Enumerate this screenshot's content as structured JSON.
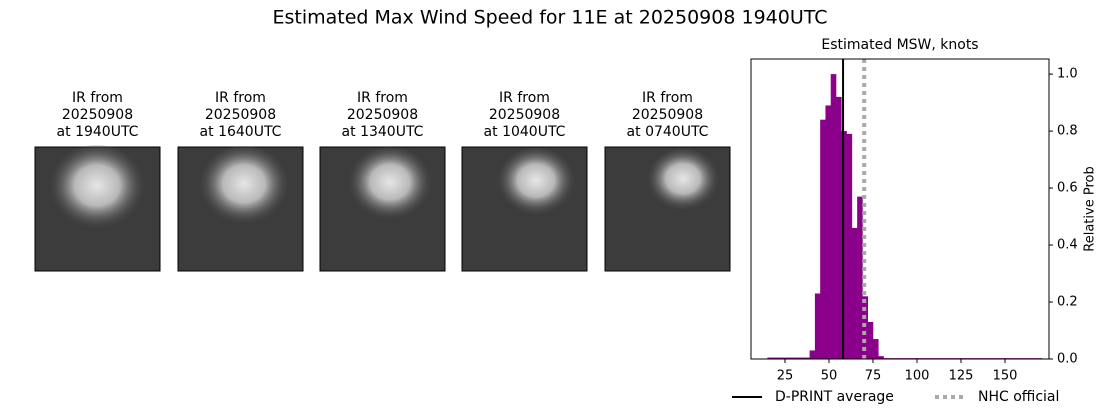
{
  "chart_data": {
    "type": "histogram",
    "title": "Estimated Max Wind Speed for 11E at 20250908 1940UTC",
    "subtitle": "Estimated MSW, knots",
    "y_label": "Relative Prob",
    "images": [
      {
        "caption": [
          "IR from",
          "20250908",
          "at 1940UTC"
        ]
      },
      {
        "caption": [
          "IR from",
          "20250908",
          "at 1640UTC"
        ]
      },
      {
        "caption": [
          "IR from",
          "20250908",
          "at 1340UTC"
        ]
      },
      {
        "caption": [
          "IR from",
          "20250908",
          "at 1040UTC"
        ]
      },
      {
        "caption": [
          "IR from",
          "20250908",
          "at 0740UTC"
        ]
      }
    ],
    "color": "#8b008b",
    "bins": [
      15,
      18,
      21,
      24,
      27,
      30,
      33,
      36,
      39,
      42,
      45,
      48,
      51,
      54,
      57,
      60,
      63,
      66,
      69,
      72,
      75,
      78,
      81,
      84,
      87,
      90,
      93,
      96,
      99,
      102,
      105,
      108,
      111,
      114,
      117,
      120,
      123,
      126,
      129,
      132,
      135,
      138,
      141,
      144,
      147,
      150,
      153,
      156,
      159,
      162,
      165,
      168,
      171
    ],
    "counts": [
      0.005,
      0.005,
      0.005,
      0.005,
      0.005,
      0.005,
      0.005,
      0.005,
      0.03,
      0.23,
      0.84,
      0.89,
      1.0,
      0.92,
      0.8,
      0.79,
      0.46,
      0.57,
      0.22,
      0.13,
      0.07,
      0.01,
      0.003,
      0.003,
      0.003,
      0.003,
      0.003,
      0.003,
      0.003,
      0.003,
      0.003,
      0.003,
      0.003,
      0.003,
      0.003,
      0.003,
      0.003,
      0.003,
      0.003,
      0.003,
      0.003,
      0.003,
      0.003,
      0.003,
      0.003,
      0.003,
      0.003,
      0.003,
      0.003,
      0.003,
      0.003,
      0.003
    ],
    "lines": [
      {
        "name": "D-PRINT average",
        "value": 58,
        "color": "#000000",
        "style": "solid"
      },
      {
        "name": "NHC official",
        "value": 70,
        "color": "#a9a9a9",
        "style": "dotted"
      }
    ],
    "xlim": [
      5.7,
      175
    ],
    "ylim": [
      0,
      1.053
    ],
    "xticks": [
      25,
      50,
      75,
      100,
      125,
      150
    ],
    "yticks": [
      {
        "value": 0,
        "label": "0.0"
      },
      0.2,
      0.4,
      0.6,
      0.8,
      {
        "value": 1,
        "label": "1.0"
      }
    ]
  }
}
